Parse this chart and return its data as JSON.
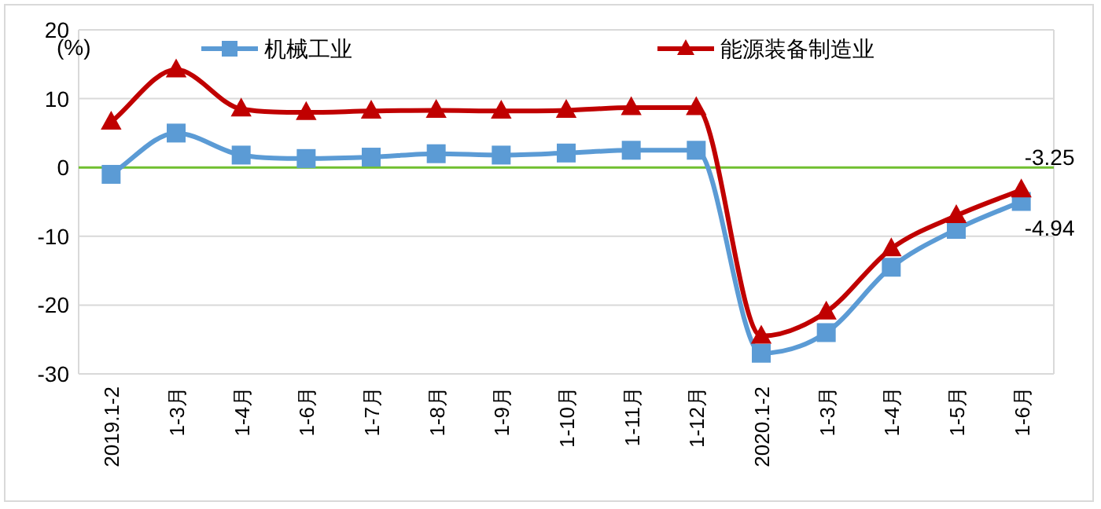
{
  "chart_data": {
    "type": "line",
    "ylabel": "(%)",
    "categories": [
      "2019.1-2",
      "1-3月",
      "1-4月",
      "1-6月",
      "1-7月",
      "1-8月",
      "1-9月",
      "1-10月",
      "1-11月",
      "1-12月",
      "2020.1-2",
      "1-3月",
      "1-4月",
      "1-5月",
      "1-6月"
    ],
    "series": [
      {
        "name": "机械工业",
        "color": "#5b9bd5",
        "marker": "square",
        "values": [
          -1.0,
          5.0,
          1.8,
          1.3,
          1.5,
          2.0,
          1.8,
          2.1,
          2.5,
          2.5,
          -27.0,
          -24.0,
          -14.5,
          -9.0,
          -4.94
        ],
        "value_labels": [
          null,
          null,
          null,
          null,
          null,
          null,
          null,
          null,
          null,
          null,
          null,
          null,
          null,
          null,
          "-4.94"
        ]
      },
      {
        "name": "能源装备制造业",
        "color": "#c00000",
        "marker": "triangle",
        "values": [
          6.6,
          14.2,
          8.5,
          8.0,
          8.2,
          8.3,
          8.2,
          8.3,
          8.7,
          8.7,
          -24.5,
          -21.0,
          -11.8,
          -7.0,
          -3.25
        ],
        "value_labels": [
          null,
          null,
          null,
          null,
          null,
          null,
          null,
          null,
          null,
          null,
          null,
          null,
          null,
          null,
          "-3.25"
        ]
      }
    ],
    "ylim": [
      -30,
      20
    ],
    "yticks": [
      -30,
      -20,
      -10,
      0,
      10,
      20
    ],
    "grid": "y",
    "legend": "top",
    "ref_lines": [
      {
        "axis": "y",
        "value": 0,
        "color": "#70c030"
      }
    ]
  }
}
